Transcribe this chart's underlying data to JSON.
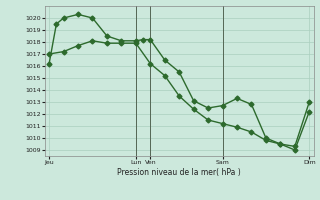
{
  "title": "Pression niveau de la mer( hPa )",
  "bg_color": "#cce8dc",
  "grid_color": "#aacfbf",
  "line_color": "#2d6a2d",
  "ylim": [
    1008.5,
    1021.0
  ],
  "yticks": [
    1009,
    1010,
    1011,
    1012,
    1013,
    1014,
    1015,
    1016,
    1017,
    1018,
    1019,
    1020
  ],
  "xtick_labels": [
    "Jeu",
    "Lun",
    "Ven",
    "Sam",
    "Dim"
  ],
  "xtick_positions": [
    0,
    6,
    7,
    12,
    18
  ],
  "vlines": [
    6,
    7,
    12
  ],
  "series1_x": [
    0,
    0.5,
    1,
    2,
    3,
    4,
    5,
    6,
    6.5,
    7,
    8,
    9,
    10,
    11,
    12,
    13,
    14,
    15,
    16,
    17,
    18
  ],
  "series1_y": [
    1016.2,
    1019.5,
    1020.0,
    1020.3,
    1020.0,
    1018.5,
    1018.1,
    1018.1,
    1018.2,
    1018.2,
    1016.5,
    1015.5,
    1013.1,
    1012.5,
    1012.7,
    1013.3,
    1012.8,
    1010.0,
    1009.5,
    1009.3,
    1013.0
  ],
  "series2_x": [
    0,
    1,
    2,
    3,
    4,
    5,
    6,
    7,
    8,
    9,
    10,
    11,
    12,
    13,
    14,
    15,
    16,
    17,
    18
  ],
  "series2_y": [
    1017.0,
    1017.2,
    1017.7,
    1018.1,
    1017.9,
    1017.9,
    1017.9,
    1016.2,
    1015.2,
    1013.5,
    1012.4,
    1011.5,
    1011.2,
    1010.9,
    1010.5,
    1009.8,
    1009.5,
    1009.0,
    1012.2
  ],
  "marker": "D",
  "markersize": 2.5,
  "linewidth": 1.0
}
